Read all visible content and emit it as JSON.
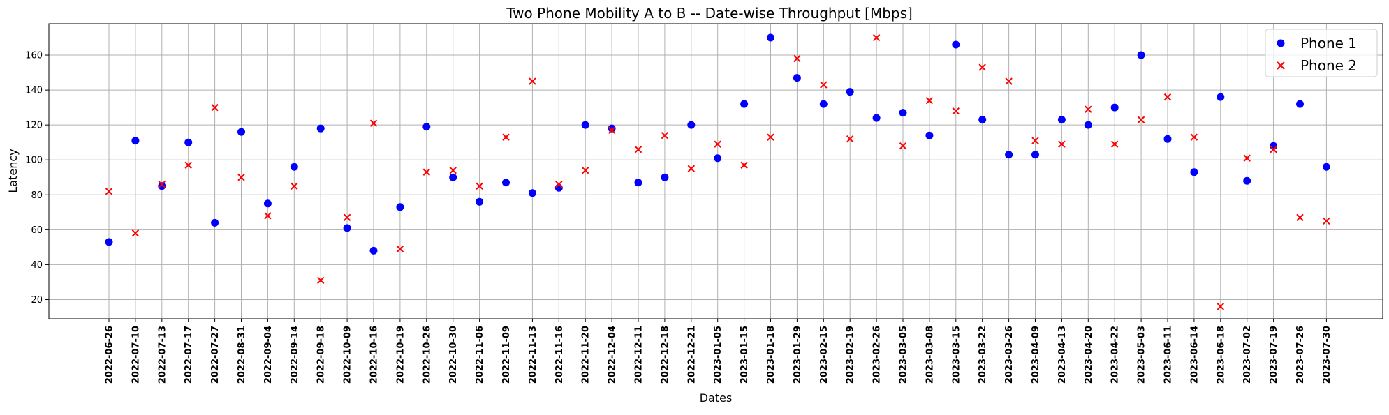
{
  "chart_data": {
    "type": "scatter",
    "title": "Two Phone Mobility A to B -- Date-wise Throughput [Mbps]",
    "xlabel": "Dates",
    "ylabel": "Latency",
    "categories": [
      "2022-06-26",
      "2022-07-10",
      "2022-07-13",
      "2022-07-17",
      "2022-07-27",
      "2022-08-31",
      "2022-09-04",
      "2022-09-14",
      "2022-09-18",
      "2022-10-09",
      "2022-10-16",
      "2022-10-19",
      "2022-10-26",
      "2022-10-30",
      "2022-11-06",
      "2022-11-09",
      "2022-11-13",
      "2022-11-16",
      "2022-11-20",
      "2022-12-04",
      "2022-12-11",
      "2022-12-18",
      "2022-12-21",
      "2023-01-05",
      "2023-01-15",
      "2023-01-18",
      "2023-01-29",
      "2023-02-15",
      "2023-02-19",
      "2023-02-26",
      "2023-03-05",
      "2023-03-08",
      "2023-03-15",
      "2023-03-22",
      "2023-03-26",
      "2023-04-09",
      "2023-04-13",
      "2023-04-20",
      "2023-04-22",
      "2023-05-03",
      "2023-06-11",
      "2023-06-14",
      "2023-06-18",
      "2023-07-02",
      "2023-07-19",
      "2023-07-26",
      "2023-07-30"
    ],
    "series": [
      {
        "name": "Phone 1",
        "marker": "circle",
        "color": "#0000ff",
        "values": [
          53,
          111,
          85,
          110,
          64,
          116,
          75,
          96,
          118,
          61,
          48,
          73,
          119,
          90,
          76,
          87,
          81,
          84,
          120,
          118,
          87,
          90,
          120,
          101,
          132,
          170,
          147,
          132,
          139,
          124,
          127,
          114,
          166,
          123,
          103,
          103,
          123,
          120,
          130,
          160,
          112,
          93,
          136,
          88,
          108,
          132,
          96
        ]
      },
      {
        "name": "Phone 2",
        "marker": "x",
        "color": "#ff0000",
        "values": [
          82,
          58,
          86,
          97,
          130,
          90,
          68,
          85,
          31,
          67,
          121,
          49,
          93,
          94,
          85,
          113,
          145,
          86,
          94,
          117,
          106,
          114,
          95,
          109,
          97,
          113,
          158,
          143,
          112,
          170,
          108,
          134,
          128,
          153,
          145,
          111,
          109,
          129,
          109,
          123,
          136,
          113,
          16,
          101,
          106,
          67,
          65
        ]
      }
    ],
    "ylim": [
      9,
      178
    ],
    "yticks": [
      20,
      40,
      60,
      80,
      100,
      120,
      140,
      160
    ],
    "grid": true,
    "legend_position": "top-right"
  }
}
